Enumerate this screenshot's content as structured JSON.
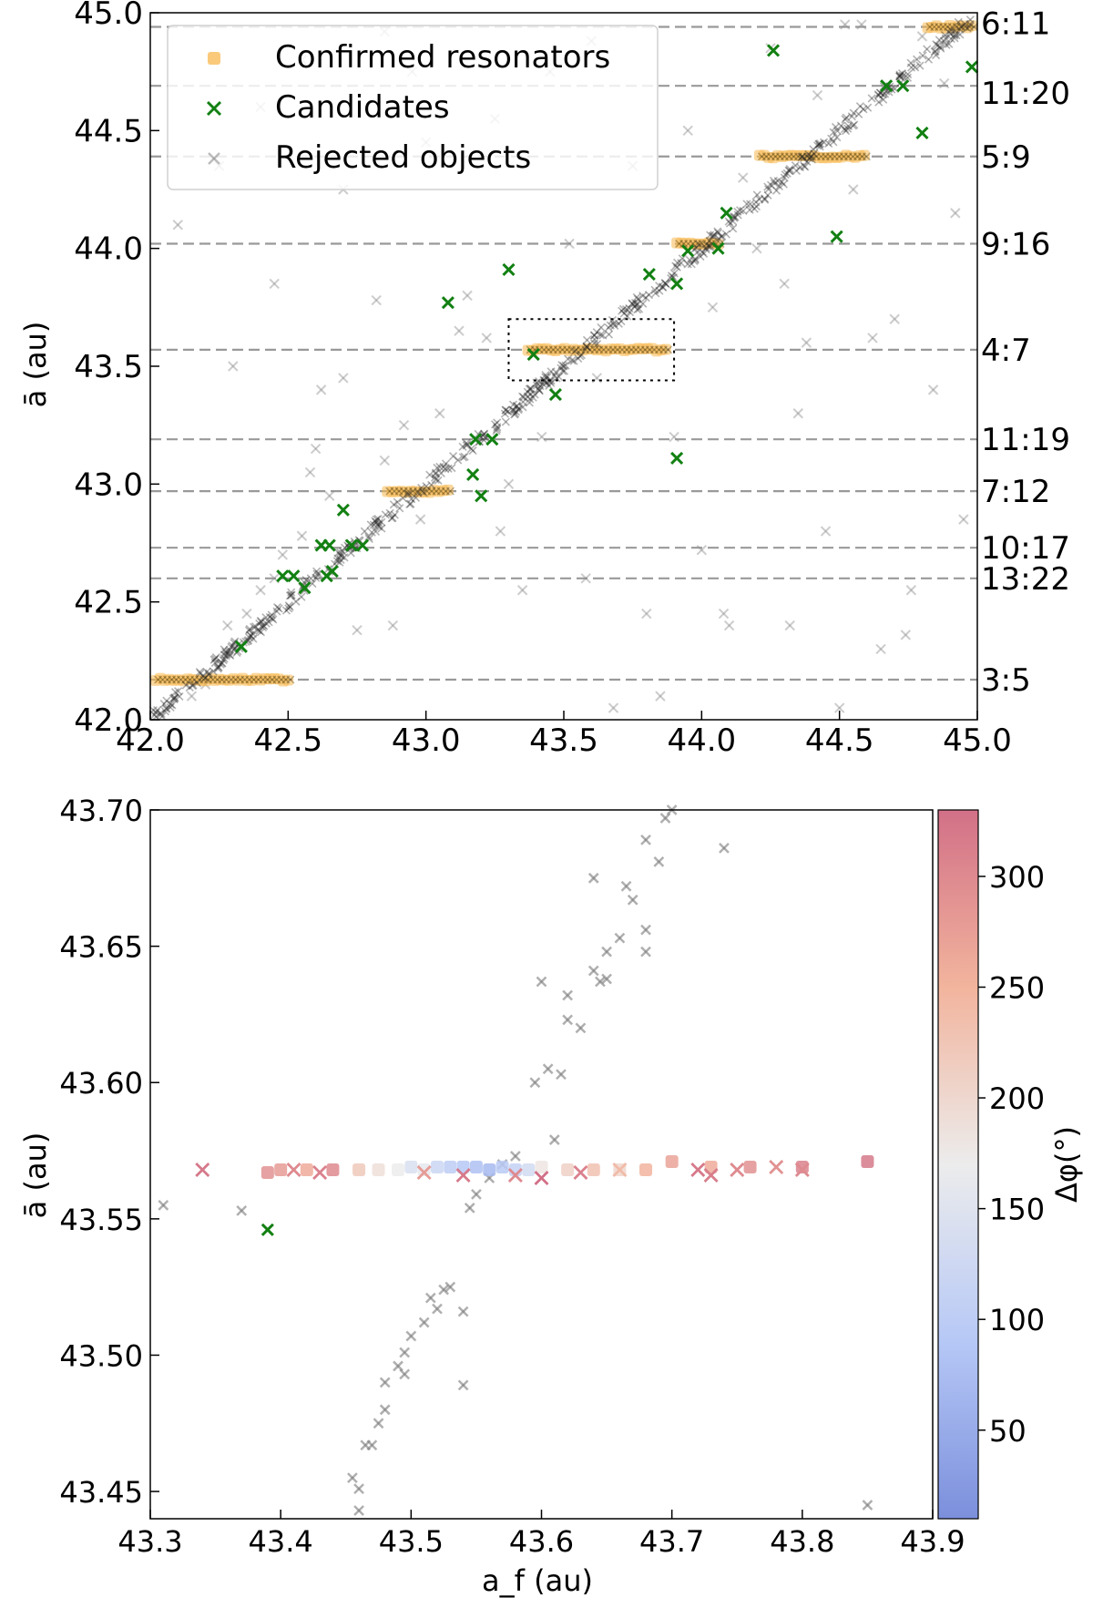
{
  "chart_data": [
    {
      "type": "scatter",
      "panel": "top",
      "xlabel": "",
      "ylabel": "ā (au)",
      "xlim": [
        42.0,
        45.0
      ],
      "ylim": [
        42.0,
        45.0
      ],
      "x_ticks": [
        "42.0",
        "42.5",
        "43.0",
        "43.5",
        "44.0",
        "44.5",
        "45.0"
      ],
      "y_ticks": [
        "42.0",
        "42.5",
        "43.0",
        "43.5",
        "44.0",
        "44.5",
        "45.0"
      ],
      "legend_placement": "top-left",
      "legend": [
        {
          "label": "Confirmed resonators",
          "marker": "square",
          "color": "#f8b84e"
        },
        {
          "label": "Candidates",
          "marker": "x",
          "color": "#128012"
        },
        {
          "label": "Rejected objects",
          "marker": "x",
          "color": "#8f8f8f"
        }
      ],
      "resonances": [
        {
          "label": "6:11",
          "a": 44.94
        },
        {
          "label": "11:20",
          "a": 44.69
        },
        {
          "label": "5:9",
          "a": 44.39
        },
        {
          "label": "9:16",
          "a": 44.02
        },
        {
          "label": "4:7",
          "a": 43.57
        },
        {
          "label": "11:19",
          "a": 43.19
        },
        {
          "label": "7:12",
          "a": 42.97
        },
        {
          "label": "10:17",
          "a": 42.73
        },
        {
          "label": "13:22",
          "a": 42.6
        },
        {
          "label": "3:5",
          "a": 42.17
        }
      ],
      "confirmed_bands": [
        {
          "resonance": "3:5",
          "a": 42.17,
          "x_range": [
            42.02,
            42.5
          ]
        },
        {
          "resonance": "7:12",
          "a": 42.97,
          "x_range": [
            42.86,
            43.08
          ]
        },
        {
          "resonance": "4:7",
          "a": 43.57,
          "x_range": [
            43.37,
            43.87
          ]
        },
        {
          "resonance": "9:16",
          "a": 44.02,
          "x_range": [
            43.91,
            44.06
          ]
        },
        {
          "resonance": "5:9",
          "a": 44.39,
          "x_range": [
            44.21,
            44.59
          ]
        },
        {
          "resonance": "6:11",
          "a": 44.94,
          "x_range": [
            44.82,
            44.98
          ]
        }
      ],
      "candidates": [
        [
          42.33,
          42.31
        ],
        [
          42.48,
          42.61
        ],
        [
          42.52,
          42.61
        ],
        [
          42.56,
          42.56
        ],
        [
          42.62,
          42.74
        ],
        [
          42.65,
          42.74
        ],
        [
          42.64,
          42.61
        ],
        [
          42.66,
          42.63
        ],
        [
          42.7,
          42.89
        ],
        [
          42.73,
          42.74
        ],
        [
          42.77,
          42.74
        ],
        [
          43.08,
          43.77
        ],
        [
          43.18,
          43.19
        ],
        [
          43.17,
          43.04
        ],
        [
          43.2,
          42.95
        ],
        [
          43.24,
          43.19
        ],
        [
          43.3,
          43.91
        ],
        [
          43.39,
          43.55
        ],
        [
          43.47,
          43.38
        ],
        [
          43.81,
          43.89
        ],
        [
          43.91,
          43.85
        ],
        [
          43.91,
          43.11
        ],
        [
          43.95,
          43.99
        ],
        [
          44.06,
          44.0
        ],
        [
          44.09,
          44.15
        ],
        [
          44.26,
          44.84
        ],
        [
          44.49,
          44.05
        ],
        [
          44.67,
          44.69
        ],
        [
          44.73,
          44.69
        ],
        [
          44.8,
          44.49
        ],
        [
          44.98,
          44.77
        ]
      ],
      "rejected_scattered": [
        [
          42.15,
          42.1
        ],
        [
          42.2,
          42.15
        ],
        [
          42.28,
          42.4
        ],
        [
          42.35,
          42.45
        ],
        [
          42.4,
          42.55
        ],
        [
          42.45,
          42.6
        ],
        [
          42.48,
          42.7
        ],
        [
          42.55,
          42.78
        ],
        [
          42.58,
          43.05
        ],
        [
          42.6,
          43.15
        ],
        [
          42.62,
          43.4
        ],
        [
          42.65,
          42.95
        ],
        [
          42.7,
          43.45
        ],
        [
          42.75,
          42.38
        ],
        [
          42.82,
          43.78
        ],
        [
          42.85,
          43.1
        ],
        [
          42.88,
          42.4
        ],
        [
          42.92,
          43.25
        ],
        [
          42.98,
          42.85
        ],
        [
          43.05,
          43.3
        ],
        [
          43.12,
          43.65
        ],
        [
          43.15,
          43.8
        ],
        [
          43.22,
          43.62
        ],
        [
          43.27,
          42.8
        ],
        [
          43.3,
          43.0
        ],
        [
          43.35,
          42.55
        ],
        [
          43.42,
          43.2
        ],
        [
          43.52,
          44.02
        ],
        [
          43.58,
          42.6
        ],
        [
          43.62,
          43.45
        ],
        [
          43.68,
          42.05
        ],
        [
          43.75,
          44.35
        ],
        [
          43.8,
          42.45
        ],
        [
          43.85,
          42.1
        ],
        [
          43.9,
          43.2
        ],
        [
          43.95,
          44.5
        ],
        [
          44.0,
          42.72
        ],
        [
          44.04,
          43.75
        ],
        [
          44.08,
          42.45
        ],
        [
          44.1,
          42.4
        ],
        [
          44.15,
          44.3
        ],
        [
          44.2,
          44.0
        ],
        [
          44.25,
          44.85
        ],
        [
          44.3,
          43.85
        ],
        [
          44.32,
          42.4
        ],
        [
          44.35,
          43.3
        ],
        [
          44.38,
          43.6
        ],
        [
          44.42,
          44.65
        ],
        [
          44.45,
          42.8
        ],
        [
          44.5,
          42.05
        ],
        [
          44.52,
          44.95
        ],
        [
          44.55,
          44.25
        ],
        [
          44.58,
          44.95
        ],
        [
          44.62,
          43.62
        ],
        [
          44.65,
          42.3
        ],
        [
          44.7,
          43.7
        ],
        [
          44.74,
          42.36
        ],
        [
          44.76,
          42.55
        ],
        [
          44.8,
          44.9
        ],
        [
          44.84,
          43.4
        ],
        [
          44.88,
          44.7
        ],
        [
          44.92,
          44.15
        ],
        [
          44.95,
          42.85
        ],
        [
          42.1,
          44.1
        ],
        [
          42.25,
          44.35
        ],
        [
          42.4,
          44.6
        ],
        [
          42.55,
          44.8
        ],
        [
          42.7,
          44.25
        ],
        [
          42.85,
          44.92
        ],
        [
          43.0,
          44.45
        ],
        [
          43.25,
          44.55
        ],
        [
          43.45,
          44.75
        ],
        [
          43.6,
          44.88
        ],
        [
          42.3,
          43.5
        ],
        [
          42.45,
          43.85
        ],
        [
          42.95,
          44.75
        ]
      ]
    },
    {
      "type": "scatter",
      "panel": "bottom",
      "xlabel": "a_f (au)",
      "ylabel": "ā (au)",
      "xlim": [
        43.3,
        43.9
      ],
      "ylim": [
        43.44,
        43.7
      ],
      "x_ticks": [
        "43.3",
        "43.4",
        "43.5",
        "43.6",
        "43.7",
        "43.8",
        "43.9"
      ],
      "y_ticks": [
        "43.45",
        "43.50",
        "43.55",
        "43.60",
        "43.65",
        "43.70"
      ],
      "colorbar": {
        "label": "Δφ(°)",
        "range": [
          10,
          330
        ],
        "ticks": [
          "50",
          "100",
          "150",
          "200",
          "250",
          "300"
        ],
        "colormap": "coolwarm"
      },
      "confirmed_squares": [
        [
          43.39,
          43.567,
          290
        ],
        [
          43.4,
          43.568,
          280
        ],
        [
          43.42,
          43.568,
          260
        ],
        [
          43.44,
          43.568,
          300
        ],
        [
          43.46,
          43.568,
          220
        ],
        [
          43.475,
          43.568,
          190
        ],
        [
          43.49,
          43.568,
          170
        ],
        [
          43.5,
          43.569,
          140
        ],
        [
          43.51,
          43.568,
          160
        ],
        [
          43.52,
          43.569,
          120
        ],
        [
          43.53,
          43.569,
          100
        ],
        [
          43.54,
          43.569,
          90
        ],
        [
          43.55,
          43.569,
          80
        ],
        [
          43.56,
          43.568,
          70
        ],
        [
          43.57,
          43.569,
          95
        ],
        [
          43.58,
          43.568,
          110
        ],
        [
          43.59,
          43.568,
          130
        ],
        [
          43.6,
          43.569,
          180
        ],
        [
          43.62,
          43.568,
          210
        ],
        [
          43.64,
          43.568,
          230
        ],
        [
          43.66,
          43.568,
          200
        ],
        [
          43.68,
          43.568,
          250
        ],
        [
          43.7,
          43.571,
          270
        ],
        [
          43.73,
          43.569,
          260
        ],
        [
          43.76,
          43.569,
          290
        ],
        [
          43.8,
          43.569,
          310
        ],
        [
          43.85,
          43.571,
          320
        ]
      ],
      "confirmed_crosses": [
        [
          43.34,
          43.568,
          320
        ],
        [
          43.41,
          43.568,
          300
        ],
        [
          43.43,
          43.567,
          310
        ],
        [
          43.51,
          43.567,
          280
        ],
        [
          43.54,
          43.566,
          320
        ],
        [
          43.58,
          43.566,
          300
        ],
        [
          43.6,
          43.565,
          330
        ],
        [
          43.63,
          43.567,
          310
        ],
        [
          43.66,
          43.568,
          240
        ],
        [
          43.72,
          43.568,
          320
        ],
        [
          43.73,
          43.566,
          315
        ],
        [
          43.75,
          43.568,
          300
        ],
        [
          43.78,
          43.569,
          290
        ],
        [
          43.8,
          43.568,
          300
        ]
      ],
      "candidates": [
        [
          43.39,
          43.546
        ]
      ],
      "rejected": [
        [
          43.31,
          43.555
        ],
        [
          43.37,
          43.553
        ],
        [
          43.455,
          43.455
        ],
        [
          43.46,
          43.451
        ],
        [
          43.46,
          43.443
        ],
        [
          43.465,
          43.467
        ],
        [
          43.47,
          43.467
        ],
        [
          43.475,
          43.475
        ],
        [
          43.48,
          43.48
        ],
        [
          43.48,
          43.49
        ],
        [
          43.49,
          43.496
        ],
        [
          43.495,
          43.493
        ],
        [
          43.495,
          43.501
        ],
        [
          43.5,
          43.507
        ],
        [
          43.51,
          43.512
        ],
        [
          43.515,
          43.521
        ],
        [
          43.52,
          43.517
        ],
        [
          43.525,
          43.524
        ],
        [
          43.53,
          43.525
        ],
        [
          43.54,
          43.516
        ],
        [
          43.54,
          43.489
        ],
        [
          43.545,
          43.554
        ],
        [
          43.55,
          43.559
        ],
        [
          43.56,
          43.565
        ],
        [
          43.57,
          43.57
        ],
        [
          43.58,
          43.573
        ],
        [
          43.595,
          43.6
        ],
        [
          43.6,
          43.637
        ],
        [
          43.605,
          43.605
        ],
        [
          43.61,
          43.579
        ],
        [
          43.615,
          43.603
        ],
        [
          43.62,
          43.623
        ],
        [
          43.62,
          43.632
        ],
        [
          43.63,
          43.62
        ],
        [
          43.64,
          43.675
        ],
        [
          43.64,
          43.641
        ],
        [
          43.645,
          43.637
        ],
        [
          43.65,
          43.638
        ],
        [
          43.65,
          43.648
        ],
        [
          43.66,
          43.653
        ],
        [
          43.665,
          43.672
        ],
        [
          43.67,
          43.667
        ],
        [
          43.68,
          43.656
        ],
        [
          43.68,
          43.689
        ],
        [
          43.68,
          43.648
        ],
        [
          43.69,
          43.681
        ],
        [
          43.695,
          43.697
        ],
        [
          43.7,
          43.7
        ],
        [
          43.74,
          43.686
        ],
        [
          43.85,
          43.445
        ]
      ]
    }
  ]
}
